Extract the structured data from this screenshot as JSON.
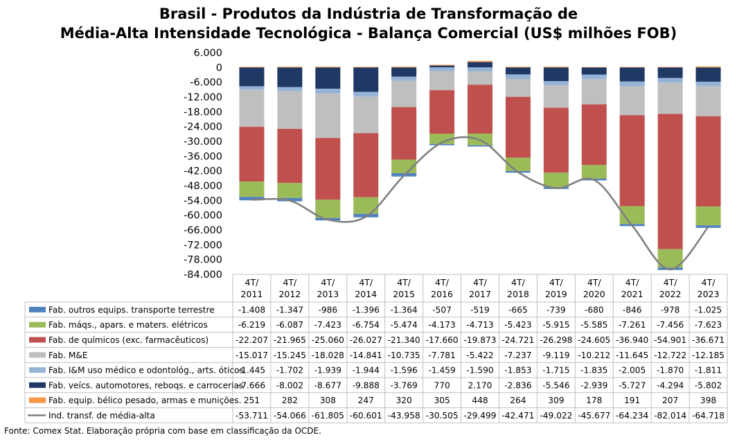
{
  "chart_data": {
    "type": "bar",
    "title": "Brasil - Produtos da Indústria de Transformação de",
    "subtitle": "Média-Alta Intensidade Tecnológica - Balança Comercial (US$ milhões FOB)",
    "y_ticks": [
      "6.000",
      "0",
      "-6.000",
      "-12.000",
      "-18.000",
      "-24.000",
      "-30.000",
      "-36.000",
      "-42.000",
      "-48.000",
      "-54.000",
      "-60.000",
      "-66.000",
      "-72.000",
      "-78.000",
      "-84.000"
    ],
    "ylim": [
      -84000,
      6000
    ],
    "categories": [
      [
        "4T/",
        "2011"
      ],
      [
        "4T/",
        "2012"
      ],
      [
        "4T/",
        "2013"
      ],
      [
        "4T/",
        "2014"
      ],
      [
        "4T/",
        "2015"
      ],
      [
        "4T/",
        "2016"
      ],
      [
        "4T/",
        "2017"
      ],
      [
        "4T/",
        "2018"
      ],
      [
        "4T/",
        "2019"
      ],
      [
        "4T/",
        "2020"
      ],
      [
        "4T/",
        "2021"
      ],
      [
        "4T/",
        "2022"
      ],
      [
        "4T/",
        "2023"
      ]
    ],
    "series": [
      {
        "name": "Fab. outros equips. transporte terrestre",
        "color": "#4f81bd",
        "kind": "bar",
        "values": [
          -1408,
          -1347,
          -986,
          -1396,
          -1364,
          -507,
          -519,
          -665,
          -739,
          -680,
          -846,
          -978,
          -1025
        ],
        "labels": [
          "-1.408",
          "-1.347",
          "-986",
          "-1.396",
          "-1.364",
          "-507",
          "-519",
          "-665",
          "-739",
          "-680",
          "-846",
          "-978",
          "-1.025"
        ]
      },
      {
        "name": "Fab. máqs., apars. e maters. elétricos",
        "color": "#9bbb59",
        "kind": "bar",
        "values": [
          -6219,
          -6087,
          -7423,
          -6754,
          -5474,
          -4173,
          -4713,
          -5423,
          -5915,
          -5585,
          -7261,
          -7456,
          -7623
        ],
        "labels": [
          "-6.219",
          "-6.087",
          "-7.423",
          "-6.754",
          "-5.474",
          "-4.173",
          "-4.713",
          "-5.423",
          "-5.915",
          "-5.585",
          "-7.261",
          "-7.456",
          "-7.623"
        ]
      },
      {
        "name": "Fab. de químicos (exc. farmacêuticos)",
        "color": "#c0504d",
        "kind": "bar",
        "values": [
          -22207,
          -21965,
          -25060,
          -26027,
          -21340,
          -17660,
          -19873,
          -24721,
          -26298,
          -24605,
          -36940,
          -54901,
          -36671
        ],
        "labels": [
          "-22.207",
          "-21.965",
          "-25.060",
          "-26.027",
          "-21.340",
          "-17.660",
          "-19.873",
          "-24.721",
          "-26.298",
          "-24.605",
          "-36.940",
          "-54.901",
          "-36.671"
        ]
      },
      {
        "name": "Fab. M&E",
        "color": "#bfbfbf",
        "kind": "bar",
        "values": [
          -15017,
          -15245,
          -18028,
          -14841,
          -10735,
          -7781,
          -5422,
          -7237,
          -9119,
          -10212,
          -11645,
          -12722,
          -12185
        ],
        "labels": [
          "-15.017",
          "-15.245",
          "-18.028",
          "-14.841",
          "-10.735",
          "-7.781",
          "-5.422",
          "-7.237",
          "-9.119",
          "-10.212",
          "-11.645",
          "-12.722",
          "-12.185"
        ]
      },
      {
        "name": "Fab. I&M uso médico e odontológ., arts. óticos",
        "color": "#95b3d7",
        "kind": "bar",
        "values": [
          -1445,
          -1702,
          -1939,
          -1944,
          -1596,
          -1459,
          -1590,
          -1853,
          -1715,
          -1835,
          -2005,
          -1870,
          -1811
        ],
        "labels": [
          "-1.445",
          "-1.702",
          "-1.939",
          "-1.944",
          "-1.596",
          "-1.459",
          "-1.590",
          "-1.853",
          "-1.715",
          "-1.835",
          "-2.005",
          "-1.870",
          "-1.811"
        ]
      },
      {
        "name": "Fab. veícs. automotores, reboqs. e carrocerias",
        "color": "#1f3864",
        "kind": "bar",
        "values": [
          -7666,
          -8002,
          -8677,
          -9888,
          -3769,
          770,
          2170,
          -2836,
          -5546,
          -2939,
          -5727,
          -4294,
          -5802
        ],
        "labels": [
          "-7.666",
          "-8.002",
          "-8.677",
          "-9.888",
          "-3.769",
          "770",
          "2.170",
          "-2.836",
          "-5.546",
          "-2.939",
          "-5.727",
          "-4.294",
          "-5.802"
        ]
      },
      {
        "name": "Fab. equip. bélico pesado, armas e munições.",
        "color": "#f79646",
        "kind": "bar",
        "values": [
          251,
          282,
          308,
          247,
          320,
          305,
          448,
          264,
          309,
          178,
          191,
          207,
          398
        ],
        "labels": [
          "251",
          "282",
          "308",
          "247",
          "320",
          "305",
          "448",
          "264",
          "309",
          "178",
          "191",
          "207",
          "398"
        ]
      },
      {
        "name": "Ind. transf. de média-alta",
        "color": "#7f7f7f",
        "kind": "line",
        "values": [
          -53711,
          -54066,
          -61805,
          -60601,
          -43958,
          -30505,
          -29499,
          -42471,
          -49022,
          -45677,
          -64234,
          -82014,
          -64718
        ],
        "labels": [
          "-53.711",
          "-54.066",
          "-61.805",
          "-60.601",
          "-43.958",
          "-30.505",
          "-29.499",
          "-42.471",
          "-49.022",
          "-45.677",
          "-64.234",
          "-82.014",
          "-64.718"
        ]
      }
    ],
    "legend_placement": "table-left",
    "grid": false
  },
  "footer": {
    "source": "Fonte: Comex Stat. Elaboração própria com base em classificação da OCDE."
  }
}
